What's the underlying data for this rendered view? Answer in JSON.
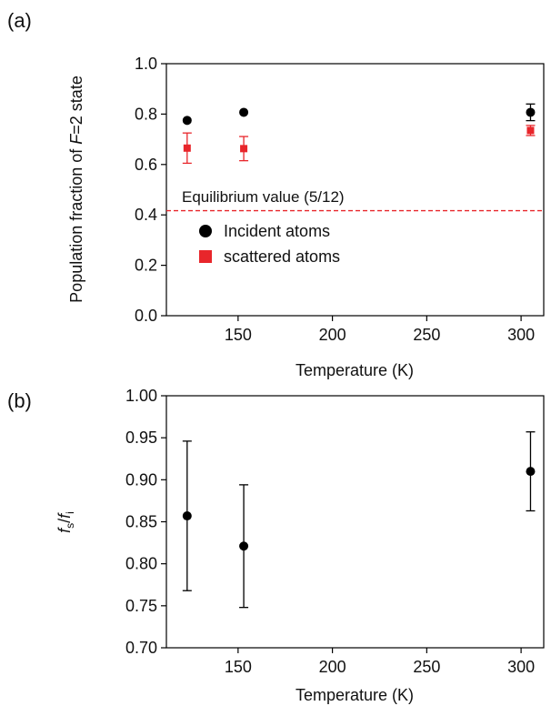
{
  "chart_data": [
    {
      "panel_label": "(a)",
      "type": "scatter",
      "ylabel_parts": [
        "Population fraction of ",
        "F",
        "=2 state"
      ],
      "xlabel": "Temperature (K)",
      "xlim": [
        112,
        312
      ],
      "ylim": [
        0.0,
        1.0
      ],
      "xticks": [
        150,
        200,
        250,
        300
      ],
      "yticks": [
        "0.0",
        "0.2",
        "0.4",
        "0.6",
        "0.8",
        "1.0"
      ],
      "grid": false,
      "legend_position": "lower-left",
      "series": [
        {
          "name": "Incident atoms",
          "marker": "circle",
          "color": "#000000",
          "points": [
            {
              "x": 123,
              "y": 0.775,
              "err": 0.0
            },
            {
              "x": 153,
              "y": 0.807,
              "err": 0.0
            },
            {
              "x": 305,
              "y": 0.807,
              "err": 0.033
            }
          ]
        },
        {
          "name": "scattered atoms",
          "marker": "square",
          "color": "#e8262b",
          "points": [
            {
              "x": 123,
              "y": 0.665,
              "err": 0.06
            },
            {
              "x": 153,
              "y": 0.663,
              "err": 0.048
            },
            {
              "x": 305,
              "y": 0.735,
              "err": 0.02
            }
          ]
        }
      ],
      "reference_line": {
        "label": "Equilibrium value (5/12)",
        "y": 0.4167,
        "color": "#e8262b",
        "style": "dashed"
      }
    },
    {
      "panel_label": "(b)",
      "type": "scatter",
      "ylabel_main": "f",
      "ylabel_num_sub": "s",
      "ylabel_den_sub": "i",
      "xlabel": "Temperature (K)",
      "xlim": [
        112,
        312
      ],
      "ylim": [
        0.7,
        1.0
      ],
      "xticks": [
        150,
        200,
        250,
        300
      ],
      "yticks": [
        "0.70",
        "0.75",
        "0.80",
        "0.85",
        "0.90",
        "0.95",
        "1.00"
      ],
      "grid": false,
      "series": [
        {
          "marker": "circle",
          "color": "#000000",
          "points": [
            {
              "x": 123,
              "y": 0.857,
              "lo": 0.768,
              "hi": 0.946
            },
            {
              "x": 153,
              "y": 0.821,
              "lo": 0.748,
              "hi": 0.894
            },
            {
              "x": 305,
              "y": 0.91,
              "lo": 0.863,
              "hi": 0.957
            }
          ]
        }
      ]
    }
  ]
}
